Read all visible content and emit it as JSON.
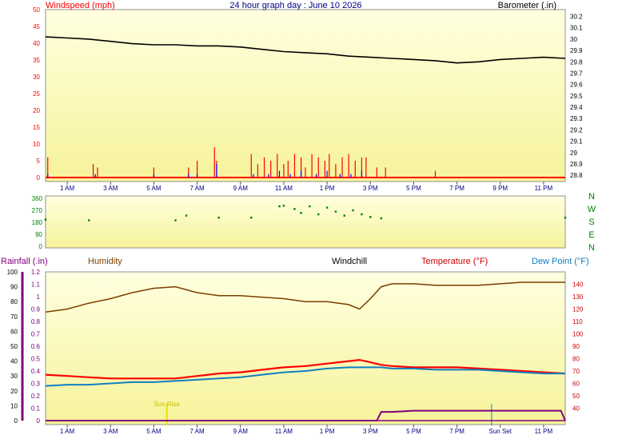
{
  "header": {
    "title": "24 hour graph day : June 10 2026",
    "left_label": "Windspeed (mph)",
    "right_label": "Barometer (.in)"
  },
  "colors": {
    "plot_bg_top": "#ffffe0",
    "plot_bg_bottom": "#f6f39a",
    "wind_gust": "#ff0000",
    "wind_avg": "#0000ff",
    "barometer": "#000000",
    "wind_dir": "#008000",
    "humidity": "#7a3f00",
    "temperature": "#ff0000",
    "dew_point": "#1080c0",
    "rainfall": "#800080",
    "sun_marker": "#e8e000"
  },
  "chart_data": [
    {
      "id": "wind-barometer",
      "type": "bar",
      "title": "24 hour graph day : June 10 2026",
      "ylabel": "Windspeed (mph)",
      "y2label": "Barometer (.in)",
      "x_ticks": [
        "1 AM",
        "3 AM",
        "5 AM",
        "7 AM",
        "9 AM",
        "11 AM",
        "1 PM",
        "3 PM",
        "5 PM",
        "7 PM",
        "9 PM",
        "11 PM"
      ],
      "ylim": [
        0,
        50
      ],
      "y_ticks": [
        0,
        5,
        10,
        15,
        20,
        25,
        30,
        35,
        40,
        45,
        50
      ],
      "y2lim": [
        28.78,
        30.26
      ],
      "y2_ticks": [
        "28.8",
        "28.9",
        "29",
        "29.1",
        "29.2",
        "29.3",
        "29.4",
        "29.5",
        "29.6",
        "29.7",
        "29.8",
        "29.9",
        "30",
        "30.1",
        "30.2"
      ],
      "barometer": {
        "hours": [
          0,
          1,
          2,
          3,
          4,
          5,
          6,
          7,
          8,
          9,
          10,
          11,
          12,
          13,
          14,
          15,
          16,
          17,
          18,
          19,
          20,
          21,
          22,
          23,
          24
        ],
        "values": [
          30.02,
          30.01,
          30.0,
          29.98,
          29.96,
          29.95,
          29.95,
          29.94,
          29.94,
          29.93,
          29.91,
          29.89,
          29.88,
          29.87,
          29.85,
          29.84,
          29.83,
          29.82,
          29.81,
          29.79,
          29.8,
          29.82,
          29.83,
          29.84,
          29.83
        ]
      },
      "wind_gust": {
        "hours": [
          0.1,
          2.2,
          2.4,
          5.0,
          6.6,
          7.0,
          7.8,
          7.9,
          9.5,
          9.8,
          10.1,
          10.4,
          10.7,
          11.0,
          11.2,
          11.5,
          11.8,
          12.0,
          12.3,
          12.6,
          12.9,
          13.1,
          13.4,
          13.7,
          14.0,
          14.3,
          14.6,
          14.8,
          15.3,
          15.7,
          18.0
        ],
        "values": [
          6,
          4,
          3,
          3,
          3,
          5,
          9,
          5,
          7,
          4,
          6,
          5,
          7,
          4,
          5,
          7,
          6,
          3,
          7,
          6,
          5,
          7,
          4,
          6,
          7,
          5,
          6,
          6,
          3,
          3,
          2
        ]
      },
      "wind_avg": {
        "hours": [
          0.1,
          2.3,
          5.0,
          6.6,
          7.0,
          7.9,
          9.6,
          10.3,
          10.8,
          11.3,
          11.8,
          12.5,
          13.0,
          13.6,
          14.1,
          14.6
        ],
        "values": [
          1,
          1,
          1,
          1,
          1,
          4,
          1,
          1,
          2,
          1,
          2,
          1,
          2,
          1,
          1,
          2
        ]
      }
    },
    {
      "id": "wind-direction",
      "type": "scatter",
      "ylim": [
        0,
        360
      ],
      "y_ticks": [
        0,
        90,
        180,
        270,
        360
      ],
      "compass": [
        "N",
        "W",
        "S",
        "E",
        "N"
      ],
      "hours": [
        0,
        2,
        6,
        6.5,
        8,
        9.5,
        10.8,
        11,
        11.5,
        11.8,
        12.2,
        12.6,
        13,
        13.4,
        13.8,
        14.2,
        14.6,
        15,
        15.5,
        24
      ],
      "values": [
        200,
        195,
        195,
        230,
        215,
        215,
        300,
        305,
        280,
        250,
        300,
        240,
        290,
        260,
        230,
        270,
        240,
        220,
        210,
        215
      ]
    },
    {
      "id": "temperature-humidity",
      "type": "line",
      "labels": {
        "rainfall": "Rainfall (.in)",
        "humidity": "Humidity",
        "windchill": "Windchill",
        "temperature": "Temperature (°F)",
        "dew_point": "Dew Point (°F)"
      },
      "x_ticks": [
        "1 AM",
        "3 AM",
        "5 AM",
        "7 AM",
        "9 AM",
        "11 AM",
        "1 PM",
        "3 PM",
        "5 PM",
        "7 PM",
        "Sun Set",
        "11 PM"
      ],
      "sun_rise_label": "Sun Rise",
      "humidity_ylim": [
        0,
        100
      ],
      "humidity_ticks": [
        0,
        10,
        20,
        30,
        40,
        50,
        60,
        70,
        80,
        90,
        100
      ],
      "rain_ylim": [
        0,
        1.2
      ],
      "rain_ticks": [
        "0",
        "0.1",
        "0.2",
        "0.3",
        "0.4",
        "0.5",
        "0.6",
        "0.7",
        "0.8",
        "0.9",
        "1",
        "1.1",
        "1.2"
      ],
      "temp_ylim": [
        30,
        150
      ],
      "temp_ticks": [
        40,
        50,
        60,
        70,
        80,
        90,
        100,
        110,
        120,
        130,
        140
      ],
      "hours": [
        0,
        1,
        2,
        3,
        4,
        5,
        6,
        7,
        8,
        9,
        10,
        11,
        12,
        13,
        14,
        14.5,
        15,
        15.5,
        16,
        17,
        18,
        19,
        20,
        21,
        22,
        23,
        24
      ],
      "humidity": [
        73,
        75,
        79,
        82,
        86,
        89,
        90,
        86,
        84,
        84,
        83,
        82,
        80,
        80,
        78,
        75,
        82,
        90,
        92,
        92,
        91,
        91,
        91,
        92,
        93,
        93,
        93
      ],
      "temperature": [
        67,
        66,
        65,
        64,
        64,
        64,
        64,
        66,
        68,
        69,
        71,
        73,
        74,
        76,
        78,
        79,
        77,
        75,
        74,
        73,
        73,
        73,
        72,
        71,
        70,
        69,
        68
      ],
      "dew_point": [
        58,
        59,
        59,
        60,
        61,
        61,
        62,
        63,
        64,
        65,
        67,
        69,
        70,
        72,
        73,
        73,
        73,
        73,
        72,
        72,
        71,
        71,
        71,
        70,
        69,
        68,
        68
      ],
      "rainfall": {
        "hours": [
          0,
          15.3,
          15.5,
          16,
          17,
          18,
          19,
          20,
          21,
          22,
          23,
          23.8,
          24
        ],
        "values": [
          0,
          0,
          0.07,
          0.07,
          0.08,
          0.08,
          0.08,
          0.08,
          0.08,
          0.08,
          0.08,
          0.08,
          0
        ]
      },
      "sun_rise_hour": 5.6,
      "sun_set_hour": 20.6
    }
  ]
}
